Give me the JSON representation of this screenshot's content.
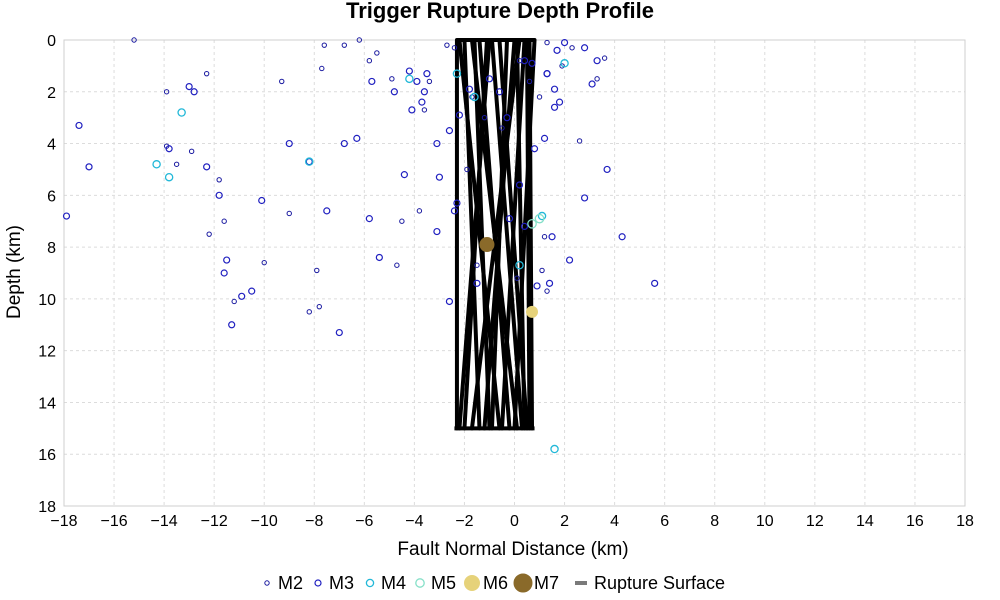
{
  "chart_data": {
    "type": "scatter",
    "title": "Trigger Rupture Depth Profile",
    "xlabel": "Fault Normal Distance (km)",
    "ylabel": "Depth (km)",
    "xlim": [
      -18,
      18
    ],
    "ylim": [
      0,
      18
    ],
    "y_inverted": true,
    "grid": true,
    "legend_placement": "bottom-center",
    "x_ticks": [
      -18,
      -16,
      -14,
      -12,
      -10,
      -8,
      -6,
      -4,
      -2,
      0,
      2,
      4,
      6,
      8,
      10,
      12,
      14,
      16,
      18
    ],
    "y_ticks": [
      0,
      2,
      4,
      6,
      8,
      10,
      12,
      14,
      16,
      18
    ],
    "series": [
      {
        "name": "M2",
        "color": "#1a1aa0",
        "marker": "open-circle-small",
        "points": [
          [
            -15.2,
            0.0
          ],
          [
            -13.9,
            2.0
          ],
          [
            -12.3,
            1.3
          ],
          [
            -13.9,
            4.1
          ],
          [
            -13.5,
            4.8
          ],
          [
            -12.9,
            4.3
          ],
          [
            -11.8,
            5.4
          ],
          [
            -11.6,
            7.0
          ],
          [
            -12.2,
            7.5
          ],
          [
            -9.3,
            1.6
          ],
          [
            -9.0,
            6.7
          ],
          [
            -7.9,
            8.9
          ],
          [
            -7.7,
            1.1
          ],
          [
            -7.6,
            0.2
          ],
          [
            -6.8,
            0.2
          ],
          [
            -5.8,
            0.8
          ],
          [
            -5.5,
            0.5
          ],
          [
            -4.9,
            1.5
          ],
          [
            -4.5,
            7.0
          ],
          [
            -3.8,
            6.6
          ],
          [
            -4.7,
            8.7
          ],
          [
            -3.4,
            1.6
          ],
          [
            -3.6,
            2.7
          ],
          [
            -2.7,
            0.2
          ],
          [
            -2.4,
            0.3
          ],
          [
            -1.7,
            2.2
          ],
          [
            -1.2,
            3.0
          ],
          [
            -0.5,
            3.4
          ],
          [
            0.2,
            0.8
          ],
          [
            0.6,
            1.6
          ],
          [
            1.0,
            2.2
          ],
          [
            1.3,
            0.1
          ],
          [
            1.9,
            1.0
          ],
          [
            2.3,
            0.3
          ],
          [
            2.6,
            3.9
          ],
          [
            3.3,
            1.5
          ],
          [
            3.6,
            0.7
          ],
          [
            1.1,
            8.9
          ],
          [
            1.3,
            9.7
          ],
          [
            0.1,
            9.2
          ],
          [
            -1.5,
            8.7
          ],
          [
            1.2,
            7.6
          ],
          [
            -6.2,
            0.0
          ],
          [
            -8.2,
            10.5
          ],
          [
            -7.8,
            10.3
          ],
          [
            -10.0,
            8.6
          ],
          [
            -11.2,
            10.1
          ],
          [
            -1.9,
            5.0
          ]
        ]
      },
      {
        "name": "M3",
        "color": "#2020c0",
        "marker": "open-circle",
        "points": [
          [
            -17.4,
            3.3
          ],
          [
            -13.0,
            1.8
          ],
          [
            -12.8,
            2.0
          ],
          [
            -13.8,
            4.2
          ],
          [
            -12.3,
            4.9
          ],
          [
            -11.8,
            6.0
          ],
          [
            -11.6,
            9.0
          ],
          [
            -11.5,
            8.5
          ],
          [
            -11.3,
            11.0
          ],
          [
            -10.9,
            9.9
          ],
          [
            -10.5,
            9.7
          ],
          [
            -10.1,
            6.2
          ],
          [
            -9.0,
            4.0
          ],
          [
            -8.2,
            4.7
          ],
          [
            -7.5,
            6.6
          ],
          [
            -6.8,
            4.0
          ],
          [
            -6.3,
            3.8
          ],
          [
            -5.8,
            6.9
          ],
          [
            -5.4,
            8.4
          ],
          [
            -5.7,
            1.6
          ],
          [
            -4.4,
            5.2
          ],
          [
            -4.2,
            1.2
          ],
          [
            -3.9,
            1.6
          ],
          [
            -3.6,
            2.0
          ],
          [
            -3.1,
            4.0
          ],
          [
            -3.0,
            5.3
          ],
          [
            -3.1,
            7.4
          ],
          [
            -2.3,
            6.3
          ],
          [
            -2.2,
            2.9
          ],
          [
            -1.8,
            1.9
          ],
          [
            -1.0,
            1.5
          ],
          [
            -0.6,
            2.0
          ],
          [
            -0.3,
            3.0
          ],
          [
            0.4,
            0.8
          ],
          [
            0.7,
            0.9
          ],
          [
            1.3,
            1.3
          ],
          [
            1.7,
            0.4
          ],
          [
            2.0,
            0.1
          ],
          [
            2.8,
            0.3
          ],
          [
            3.1,
            1.7
          ],
          [
            3.3,
            0.8
          ],
          [
            3.7,
            5.0
          ],
          [
            2.8,
            6.1
          ],
          [
            2.2,
            8.5
          ],
          [
            1.4,
            9.4
          ],
          [
            0.9,
            9.5
          ],
          [
            1.5,
            7.6
          ],
          [
            0.4,
            7.2
          ],
          [
            -0.2,
            6.9
          ],
          [
            4.3,
            7.6
          ],
          [
            5.6,
            9.4
          ],
          [
            -7.0,
            11.3
          ],
          [
            -2.6,
            10.1
          ],
          [
            -1.5,
            9.4
          ],
          [
            -3.5,
            1.3
          ],
          [
            -3.7,
            2.4
          ],
          [
            -4.1,
            2.7
          ],
          [
            -4.8,
            2.0
          ],
          [
            1.2,
            3.8
          ],
          [
            1.6,
            2.6
          ],
          [
            -2.6,
            3.5
          ],
          [
            0.8,
            4.2
          ],
          [
            0.2,
            5.6
          ],
          [
            -2.4,
            6.6
          ],
          [
            -17.9,
            6.8
          ],
          [
            -17.0,
            4.9
          ],
          [
            1.6,
            1.9
          ],
          [
            1.3,
            1.3
          ],
          [
            1.8,
            2.4
          ]
        ]
      },
      {
        "name": "M4",
        "color": "#22b8d8",
        "marker": "open-circle-medium",
        "points": [
          [
            -13.3,
            2.8
          ],
          [
            -14.3,
            4.8
          ],
          [
            -13.8,
            5.3
          ],
          [
            -8.2,
            4.7
          ],
          [
            -4.2,
            1.5
          ],
          [
            -2.3,
            1.3
          ],
          [
            -1.6,
            2.2
          ],
          [
            0.2,
            8.7
          ],
          [
            1.6,
            15.8
          ],
          [
            2.0,
            0.9
          ],
          [
            1.1,
            6.8
          ]
        ]
      },
      {
        "name": "M5",
        "color": "#86e0c8",
        "marker": "open-circle-large",
        "points": [
          [
            1.0,
            6.9
          ],
          [
            0.7,
            7.1
          ]
        ]
      },
      {
        "name": "M6",
        "color": "#e6d27a",
        "marker": "filled-circle",
        "points": [
          [
            0.7,
            10.5
          ]
        ]
      },
      {
        "name": "M7",
        "color": "#8a6a2a",
        "marker": "filled-circle-large",
        "points": [
          [
            -1.1,
            7.9
          ]
        ]
      }
    ],
    "rupture_surface": {
      "name": "Rupture Surface",
      "color": "#000000",
      "legend_color": "#7a7a7a",
      "top_depth": 0,
      "bottom_depth": 15,
      "segments": [
        [
          -2.3,
          0,
          -2.3,
          15
        ],
        [
          0.6,
          0,
          0.7,
          15
        ],
        [
          -1.7,
          0,
          0.1,
          15
        ],
        [
          -1.1,
          0,
          -2.0,
          15
        ],
        [
          -0.6,
          0,
          0.5,
          15
        ],
        [
          0.0,
          0,
          -1.2,
          15
        ],
        [
          0.4,
          0,
          -0.5,
          15
        ],
        [
          -2.0,
          0,
          -1.4,
          15
        ],
        [
          -0.9,
          0,
          0.3,
          15
        ],
        [
          -1.4,
          0,
          -0.2,
          15
        ],
        [
          0.2,
          0,
          -1.7,
          15
        ],
        [
          -0.3,
          0,
          -0.9,
          15
        ],
        [
          0.8,
          0,
          0.0,
          15
        ],
        [
          -2.2,
          0,
          -0.6,
          15
        ],
        [
          -1.0,
          0,
          -2.2,
          15
        ],
        [
          0.5,
          0,
          0.6,
          15
        ],
        [
          -1.6,
          0,
          -1.0,
          15
        ],
        [
          0.1,
          0,
          0.4,
          15
        ]
      ],
      "edges": [
        [
          -2.4,
          15,
          0.8,
          15
        ],
        [
          -2.3,
          0,
          0.8,
          0
        ]
      ]
    }
  }
}
